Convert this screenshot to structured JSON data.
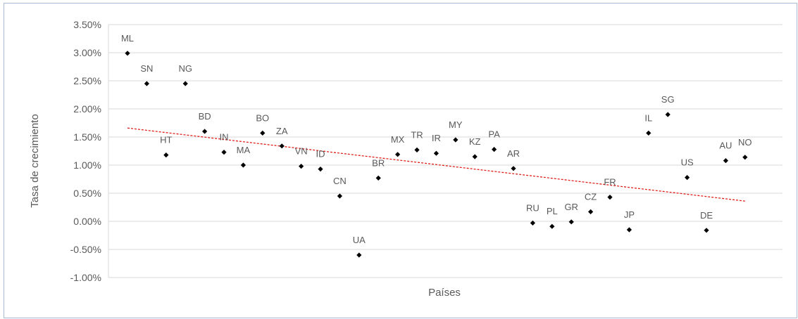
{
  "chart_data": {
    "type": "scatter",
    "title": "",
    "xlabel": "Países",
    "ylabel": "Tasa de crecimiento",
    "ylim": [
      -1.0,
      3.5
    ],
    "y_ticks": [
      "3.50%",
      "3.00%",
      "2.50%",
      "2.00%",
      "1.50%",
      "1.00%",
      "0.50%",
      "0.00%",
      "-0.50%",
      "-1.00%"
    ],
    "grid": true,
    "trendline": {
      "type": "linear",
      "style": "dashed",
      "color": "#e0201b",
      "start": 1.66,
      "end": 0.36
    },
    "point_color": "#000000",
    "points": [
      {
        "label": "ML",
        "y": 2.99
      },
      {
        "label": "SN",
        "y": 2.45
      },
      {
        "label": "HT",
        "y": 1.18
      },
      {
        "label": "NG",
        "y": 2.45
      },
      {
        "label": "BD",
        "y": 1.6
      },
      {
        "label": "IN",
        "y": 1.23
      },
      {
        "label": "MA",
        "y": 1.0
      },
      {
        "label": "BO",
        "y": 1.57
      },
      {
        "label": "ZA",
        "y": 1.34
      },
      {
        "label": "VN",
        "y": 0.98
      },
      {
        "label": "ID",
        "y": 0.93
      },
      {
        "label": "CN",
        "y": 0.45
      },
      {
        "label": "UA",
        "y": -0.6
      },
      {
        "label": "BR",
        "y": 0.77
      },
      {
        "label": "MX",
        "y": 1.19
      },
      {
        "label": "TR",
        "y": 1.27
      },
      {
        "label": "IR",
        "y": 1.21
      },
      {
        "label": "MY",
        "y": 1.45
      },
      {
        "label": "KZ",
        "y": 1.15
      },
      {
        "label": "PA",
        "y": 1.28
      },
      {
        "label": "AR",
        "y": 0.94
      },
      {
        "label": "RU",
        "y": -0.03
      },
      {
        "label": "PL",
        "y": -0.09
      },
      {
        "label": "GR",
        "y": -0.01
      },
      {
        "label": "CZ",
        "y": 0.17
      },
      {
        "label": "FR",
        "y": 0.43
      },
      {
        "label": "JP",
        "y": -0.15
      },
      {
        "label": "IL",
        "y": 1.57
      },
      {
        "label": "SG",
        "y": 1.9
      },
      {
        "label": "US",
        "y": 0.78
      },
      {
        "label": "DE",
        "y": -0.16
      },
      {
        "label": "AU",
        "y": 1.08
      },
      {
        "label": "NO",
        "y": 1.14
      }
    ]
  }
}
